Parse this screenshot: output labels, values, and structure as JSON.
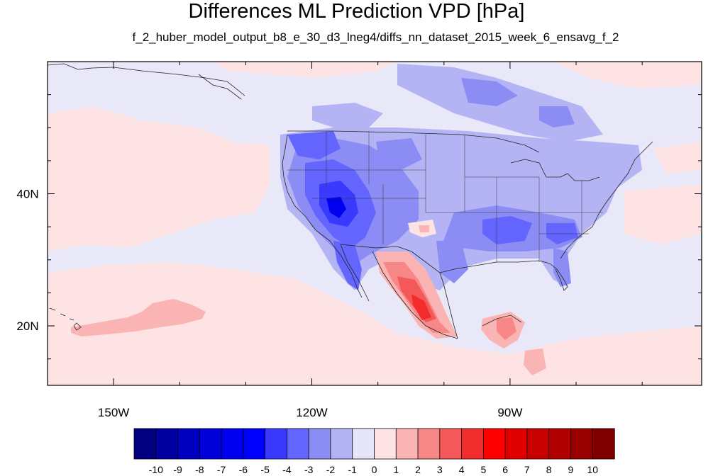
{
  "title": "Differences ML Prediction VPD [hPa]",
  "subtitle": "f_2_huber_model_output_b8_e_30_d3_lneg4/diffs_nn_dataset_2015_week_6_ensavg_f_2",
  "map": {
    "projection": "cylindrical equidistant",
    "lon_range": [
      -160,
      -61
    ],
    "lat_range": [
      11,
      60
    ],
    "lon_ticks": [
      {
        "value": -150,
        "label": "150W"
      },
      {
        "value": -120,
        "label": "120W"
      },
      {
        "value": -90,
        "label": "90W"
      }
    ],
    "lat_ticks": [
      {
        "value": 40,
        "label": "40N"
      },
      {
        "value": 20,
        "label": "20N"
      }
    ],
    "background_color": "#ebebfa"
  },
  "colorbar": {
    "labels": [
      "-10",
      "-9",
      "-8",
      "-7",
      "-6",
      "-5",
      "-4",
      "-3",
      "-2",
      "-1",
      "0",
      "1",
      "2",
      "3",
      "4",
      "5",
      "6",
      "7",
      "8",
      "9",
      "10"
    ],
    "colors": [
      "#000080",
      "#0000a0",
      "#0000c0",
      "#0000d8",
      "#0000ee",
      "#0000ff",
      "#3a3aff",
      "#6464ff",
      "#8c8cf5",
      "#b4b4f5",
      "#e6e6fa",
      "#fde3e3",
      "#fbb4b4",
      "#f88888",
      "#f45858",
      "#f02c2c",
      "#ff0000",
      "#e00000",
      "#c80000",
      "#b00000",
      "#980000",
      "#800000"
    ]
  }
}
